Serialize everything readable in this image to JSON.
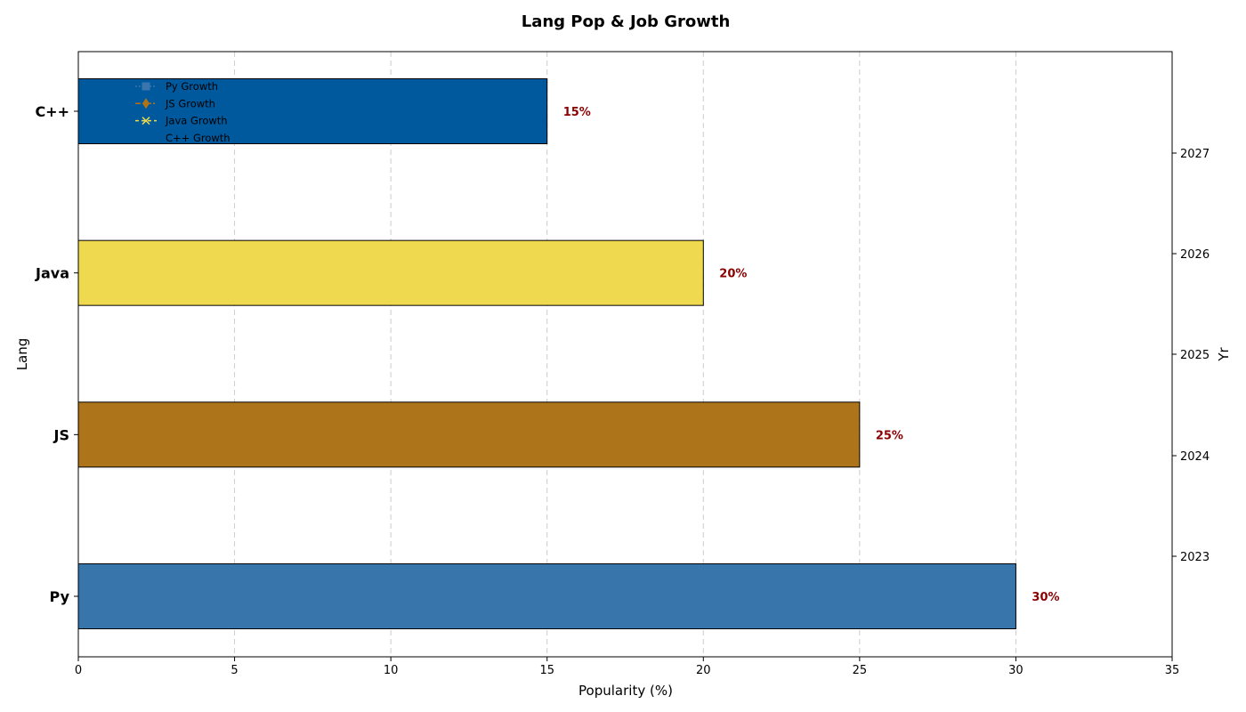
{
  "chart_data": {
    "type": "bar",
    "orientation": "horizontal",
    "title": "Lang Pop & Job Growth",
    "xlabel": "Popularity (%)",
    "ylabel": "Lang",
    "y2label": "Yr",
    "categories": [
      "Py",
      "JS",
      "Java",
      "C++"
    ],
    "values": [
      30,
      25,
      20,
      15
    ],
    "value_labels": [
      "30%",
      "25%",
      "20%",
      "15%"
    ],
    "xlim": [
      0,
      35
    ],
    "xticks": [
      0,
      5,
      10,
      15,
      20,
      25,
      30,
      35
    ],
    "y2ticks": [
      "2023",
      "2024",
      "2025",
      "2026",
      "2027"
    ],
    "grid": "x-dashed",
    "legend": {
      "placement": "top-left",
      "entries": [
        {
          "label": "Py Growth",
          "color": "#3b75ae",
          "marker": "square",
          "line": "dotted"
        },
        {
          "label": "JS Growth",
          "color": "#b07318",
          "marker": "diamond",
          "line": "dashdot"
        },
        {
          "label": "Java Growth",
          "color": "#f0da4e",
          "marker": "x",
          "line": "dashed"
        },
        {
          "label": "C++ Growth",
          "color": "#00599c",
          "marker": "none",
          "line": "none"
        }
      ]
    },
    "colors": {
      "Py": "#3775aa",
      "JS": "#ae7419",
      "Java": "#efda4f",
      "C++": "#00599d",
      "value_label": "#8b0000"
    }
  }
}
